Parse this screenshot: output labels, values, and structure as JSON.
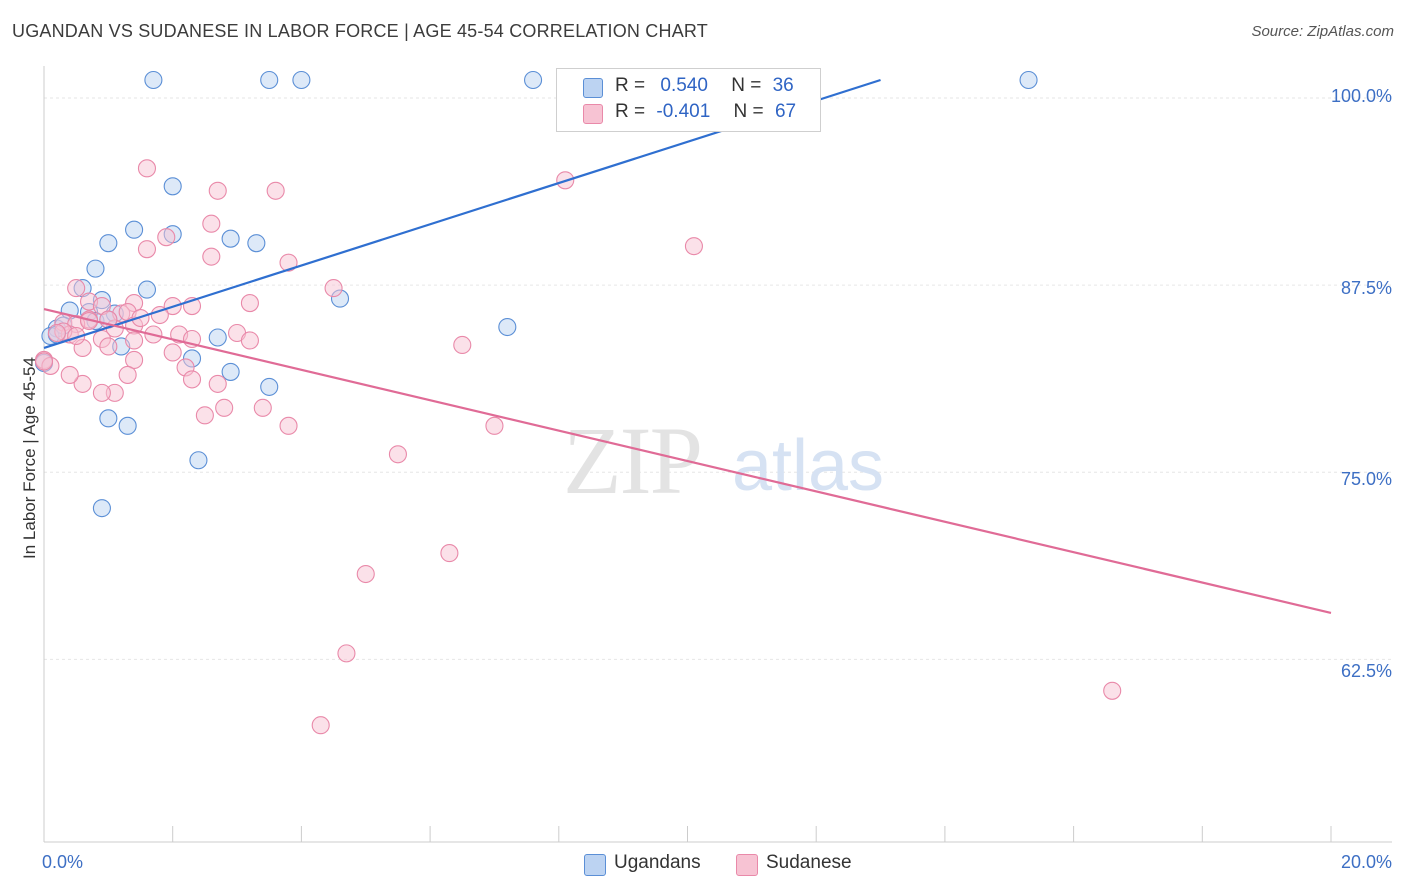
{
  "title": "UGANDAN VS SUDANESE IN LABOR FORCE | AGE 45-54 CORRELATION CHART",
  "source": "Source: ZipAtlas.com",
  "watermark": {
    "zip": "ZIP",
    "atlas": "atlas"
  },
  "colors": {
    "ugandans": "#5b8fd6",
    "ugandans_fill": "#bcd3f2",
    "ugandans_line": "#2f6fd0",
    "sudanese": "#e989a9",
    "sudanese_fill": "#f7c3d3",
    "sudanese_line": "#e06b96",
    "tick_label": "#3d6fc4"
  },
  "legend": {
    "r_label": "R =",
    "n_label": "N =",
    "ugandans": {
      "r": "0.540",
      "n": "36"
    },
    "sudanese": {
      "r": "-0.401",
      "n": "67"
    }
  },
  "bottom_legend": [
    "Ugandans",
    "Sudanese"
  ],
  "chart_data": {
    "type": "scatter",
    "xlabel": "",
    "ylabel": "In Labor Force | Age 45-54",
    "x_tick_labels": [
      "0.0%",
      "20.0%"
    ],
    "y_tick_labels": [
      "100.0%",
      "87.5%",
      "75.0%",
      "62.5%"
    ],
    "y_ticks": [
      100.0,
      87.5,
      75.0,
      62.5
    ],
    "xlim": [
      0,
      20
    ],
    "ylim": [
      50.3,
      101.2
    ],
    "grid": true,
    "legend_position": "top-center",
    "series": [
      {
        "name": "Ugandans",
        "r": 0.54,
        "n": 36,
        "trend": {
          "x": [
            0.0,
            13.0
          ],
          "y": [
            83.3,
            101.2
          ]
        },
        "points": [
          [
            1.7,
            101.2
          ],
          [
            3.5,
            101.2
          ],
          [
            4.0,
            101.2
          ],
          [
            7.6,
            101.2
          ],
          [
            15.3,
            101.2
          ],
          [
            2.0,
            94.1
          ],
          [
            1.4,
            91.2
          ],
          [
            2.0,
            90.9
          ],
          [
            1.0,
            90.3
          ],
          [
            2.9,
            90.6
          ],
          [
            3.3,
            90.3
          ],
          [
            0.8,
            88.6
          ],
          [
            0.6,
            87.3
          ],
          [
            1.6,
            87.2
          ],
          [
            4.6,
            86.6
          ],
          [
            0.9,
            86.5
          ],
          [
            0.4,
            85.8
          ],
          [
            0.7,
            85.7
          ],
          [
            1.1,
            85.6
          ],
          [
            0.8,
            85.1
          ],
          [
            1.0,
            85.2
          ],
          [
            0.2,
            84.6
          ],
          [
            0.3,
            84.8
          ],
          [
            7.2,
            84.7
          ],
          [
            0.1,
            84.1
          ],
          [
            2.7,
            84.0
          ],
          [
            1.2,
            83.4
          ],
          [
            2.3,
            82.6
          ],
          [
            2.9,
            81.7
          ],
          [
            3.5,
            80.7
          ],
          [
            0.0,
            82.3
          ],
          [
            1.0,
            78.6
          ],
          [
            1.3,
            78.1
          ],
          [
            2.4,
            75.8
          ],
          [
            0.9,
            72.6
          ],
          [
            0.2,
            84.2
          ]
        ]
      },
      {
        "name": "Sudanese",
        "r": -0.401,
        "n": 67,
        "trend": {
          "x": [
            0.0,
            20.0
          ],
          "y": [
            85.9,
            65.6
          ]
        },
        "points": [
          [
            1.6,
            95.3
          ],
          [
            2.7,
            93.8
          ],
          [
            3.6,
            93.8
          ],
          [
            8.1,
            94.5
          ],
          [
            2.6,
            91.6
          ],
          [
            1.9,
            90.7
          ],
          [
            1.6,
            89.9
          ],
          [
            2.6,
            89.4
          ],
          [
            10.1,
            90.1
          ],
          [
            3.8,
            89.0
          ],
          [
            0.5,
            87.3
          ],
          [
            4.5,
            87.3
          ],
          [
            0.7,
            86.4
          ],
          [
            3.2,
            86.3
          ],
          [
            1.4,
            86.3
          ],
          [
            2.0,
            86.1
          ],
          [
            2.3,
            86.1
          ],
          [
            0.9,
            86.1
          ],
          [
            1.2,
            85.6
          ],
          [
            1.3,
            85.7
          ],
          [
            1.8,
            85.5
          ],
          [
            0.7,
            85.2
          ],
          [
            0.3,
            85.0
          ],
          [
            0.5,
            84.9
          ],
          [
            1.4,
            84.8
          ],
          [
            1.1,
            84.6
          ],
          [
            1.5,
            85.3
          ],
          [
            0.4,
            84.2
          ],
          [
            0.3,
            84.4
          ],
          [
            1.7,
            84.2
          ],
          [
            2.1,
            84.2
          ],
          [
            3.0,
            84.3
          ],
          [
            0.9,
            83.9
          ],
          [
            1.4,
            83.8
          ],
          [
            2.3,
            83.9
          ],
          [
            3.2,
            83.8
          ],
          [
            6.5,
            83.5
          ],
          [
            0.6,
            83.3
          ],
          [
            1.0,
            83.4
          ],
          [
            2.0,
            83.0
          ],
          [
            1.4,
            82.5
          ],
          [
            2.2,
            82.0
          ],
          [
            0.0,
            82.5
          ],
          [
            0.1,
            82.1
          ],
          [
            0.0,
            82.4
          ],
          [
            1.3,
            81.5
          ],
          [
            2.3,
            81.2
          ],
          [
            1.1,
            80.3
          ],
          [
            0.6,
            80.9
          ],
          [
            0.9,
            80.3
          ],
          [
            0.4,
            81.5
          ],
          [
            2.7,
            80.9
          ],
          [
            3.4,
            79.3
          ],
          [
            2.8,
            79.3
          ],
          [
            3.8,
            78.1
          ],
          [
            2.5,
            78.8
          ],
          [
            7.0,
            78.1
          ],
          [
            5.5,
            76.2
          ],
          [
            6.3,
            69.6
          ],
          [
            5.0,
            68.2
          ],
          [
            4.7,
            62.9
          ],
          [
            4.3,
            58.1
          ],
          [
            16.6,
            60.4
          ],
          [
            0.2,
            84.3
          ],
          [
            0.5,
            84.1
          ],
          [
            1.0,
            85.2
          ],
          [
            0.7,
            85.1
          ]
        ]
      }
    ]
  }
}
